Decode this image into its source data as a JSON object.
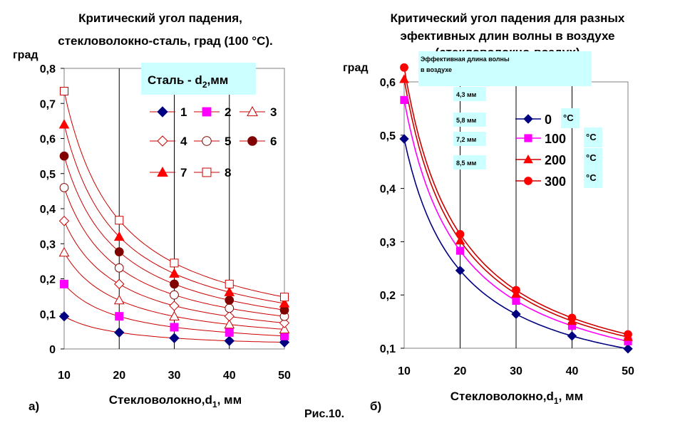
{
  "figure_label": "Рис.10.",
  "chart_data": [
    {
      "type": "line",
      "panel": "а)",
      "title_line1": "Критический угол падения,",
      "title_line2": "стекловолокно-сталь, град (100 °С).",
      "ylabel": "град",
      "xlabel": "Стекловолокно,d",
      "xlabel_sub": "1",
      "xlabel_unit": ", мм",
      "xlim": [
        10,
        50
      ],
      "ylim": [
        0,
        0.8
      ],
      "x_ticks": [
        "10",
        "20",
        "30",
        "40",
        "50"
      ],
      "y_ticks": [
        "0",
        "0,1",
        "0,2",
        "0,3",
        "0,4",
        "0,5",
        "0,6",
        "0,7",
        "0,8"
      ],
      "grid": "vertical",
      "line_color": "#cc0000",
      "legend_title": "Сталь - d",
      "legend_title_sub": "2",
      "legend_title_unit": ",мм",
      "legend_bg": "#ccffff",
      "x": [
        10,
        20,
        30,
        40,
        50
      ],
      "series": [
        {
          "name": "1",
          "marker": "diamond-filled",
          "color": "#000080",
          "values": [
            0.093,
            0.047,
            0.031,
            0.023,
            0.019
          ]
        },
        {
          "name": "2",
          "marker": "square-filled",
          "color": "#ff00ff",
          "values": [
            0.185,
            0.093,
            0.062,
            0.047,
            0.037
          ]
        },
        {
          "name": "3",
          "marker": "triangle-open",
          "color": "#cc0000",
          "values": [
            0.275,
            0.139,
            0.093,
            0.07,
            0.056
          ]
        },
        {
          "name": "4",
          "marker": "diamond-open",
          "color": "#cc0000",
          "values": [
            0.365,
            0.185,
            0.123,
            0.093,
            0.074
          ]
        },
        {
          "name": "5",
          "marker": "circle-open",
          "color": "#800000",
          "values": [
            0.46,
            0.231,
            0.154,
            0.116,
            0.093
          ]
        },
        {
          "name": "6",
          "marker": "circle-filled",
          "color": "#800000",
          "values": [
            0.55,
            0.277,
            0.185,
            0.139,
            0.111
          ]
        },
        {
          "name": "7",
          "marker": "triangle-filled",
          "color": "#ff0000",
          "values": [
            0.64,
            0.32,
            0.215,
            0.162,
            0.13
          ]
        },
        {
          "name": "8",
          "marker": "square-open",
          "color": "#cc0000",
          "values": [
            0.735,
            0.367,
            0.245,
            0.185,
            0.148
          ]
        }
      ]
    },
    {
      "type": "line",
      "panel": "б)",
      "title_line1": "Критический угол падения для разных",
      "title_line2": "эфективных длин волны  в воздухе",
      "title_line3": "(стекловолокно-воздух)",
      "ylabel": "град",
      "xlabel": "Стекловолокно,d",
      "xlabel_sub": "1",
      "xlabel_unit": ", мм",
      "xlim": [
        10,
        50
      ],
      "ylim": [
        0.1,
        0.6
      ],
      "x_ticks": [
        "10",
        "20",
        "30",
        "40",
        "50"
      ],
      "y_ticks": [
        "0,1",
        "0,2",
        "0,3",
        "0,4",
        "0,5",
        "0,6"
      ],
      "grid": "vertical",
      "annotation_title_1": "Эффективная длина волны",
      "annotation_title_2": "в воздухе",
      "annotation_bg": "#ccffff",
      "wavelengths": [
        "4,3 мм",
        "5,8 мм",
        "7,2 мм",
        "8,5 мм"
      ],
      "temp_unit": "°С",
      "x": [
        10,
        20,
        30,
        40,
        50
      ],
      "series": [
        {
          "name": "0",
          "marker": "diamond-filled",
          "color": "#000080",
          "marker_color": "#000080",
          "values": [
            0.493,
            0.246,
            0.164,
            0.123,
            0.099
          ]
        },
        {
          "name": "100",
          "marker": "square-filled",
          "color": "#ff00ff",
          "marker_color": "#ff00ff",
          "values": [
            0.566,
            0.283,
            0.189,
            0.142,
            0.113
          ]
        },
        {
          "name": "200",
          "marker": "triangle-filled",
          "color": "#cc0000",
          "marker_color": "#ff0000",
          "values": [
            0.605,
            0.302,
            0.202,
            0.151,
            0.121
          ]
        },
        {
          "name": "300",
          "marker": "circle-filled",
          "color": "#cc0000",
          "marker_color": "#ff0000",
          "values": [
            0.627,
            0.314,
            0.209,
            0.157,
            0.126
          ]
        }
      ]
    }
  ]
}
